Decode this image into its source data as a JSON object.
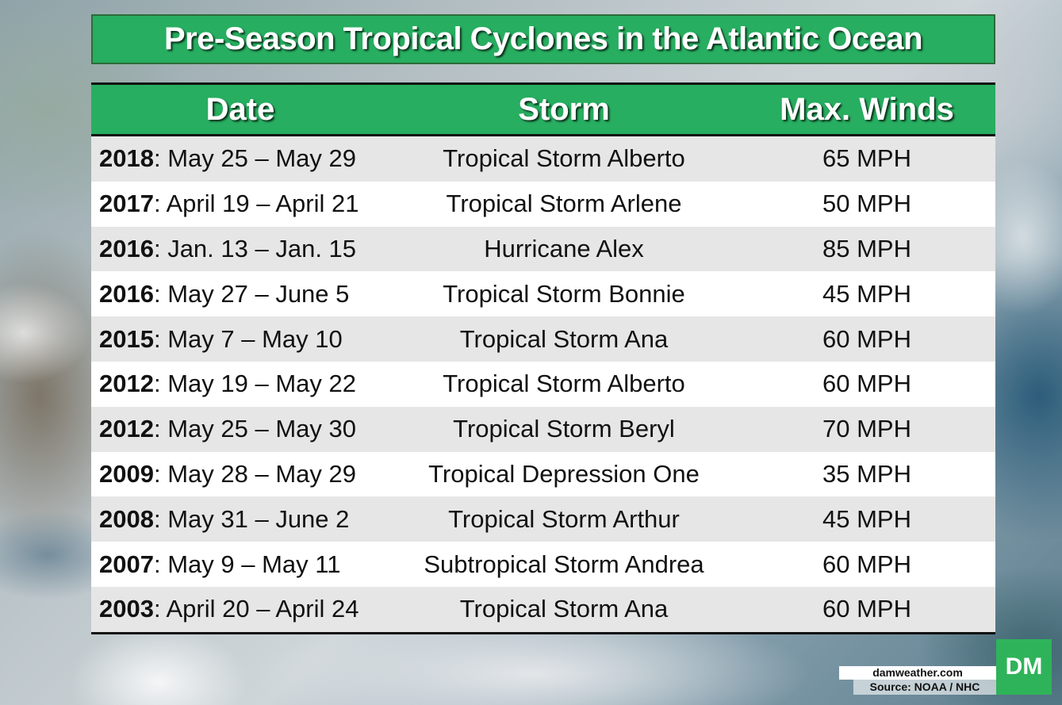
{
  "title": "Pre-Season Tropical Cyclones in the Atlantic Ocean",
  "columns": [
    "Date",
    "Storm",
    "Max. Winds"
  ],
  "rows": [
    {
      "year": "2018",
      "dates": ": May 25 – May 29",
      "storm": "Tropical Storm Alberto",
      "winds": "65 MPH"
    },
    {
      "year": "2017",
      "dates": ": April 19 – April 21",
      "storm": "Tropical Storm Arlene",
      "winds": "50 MPH"
    },
    {
      "year": "2016",
      "dates": ": Jan. 13 – Jan. 15",
      "storm": "Hurricane Alex",
      "winds": "85 MPH"
    },
    {
      "year": "2016",
      "dates": ": May 27 – June 5",
      "storm": "Tropical Storm Bonnie",
      "winds": "45 MPH"
    },
    {
      "year": "2015",
      "dates": ": May 7 – May 10",
      "storm": "Tropical Storm Ana",
      "winds": "60 MPH"
    },
    {
      "year": "2012",
      "dates": ": May 19 – May 22",
      "storm": "Tropical Storm Alberto",
      "winds": "60 MPH"
    },
    {
      "year": "2012",
      "dates": ": May 25 – May 30",
      "storm": "Tropical Storm Beryl",
      "winds": "70 MPH"
    },
    {
      "year": "2009",
      "dates": ": May 28 – May 29",
      "storm": "Tropical Depression One",
      "winds": "35 MPH"
    },
    {
      "year": "2008",
      "dates": ": May 31 – June 2",
      "storm": "Tropical Storm Arthur",
      "winds": "45 MPH"
    },
    {
      "year": "2007",
      "dates": ": May 9 – May 11",
      "storm": "Subtropical Storm Andrea",
      "winds": "60 MPH"
    },
    {
      "year": "2003",
      "dates": ": April 20 – April 24",
      "storm": "Tropical Storm Ana",
      "winds": "60 MPH"
    }
  ],
  "credit": {
    "site": "damweather.com",
    "source": "Source: NOAA / NHC"
  },
  "logo": "DM",
  "colors": {
    "header_green": "#27ae60",
    "row_alt": "#e6e6e6"
  }
}
